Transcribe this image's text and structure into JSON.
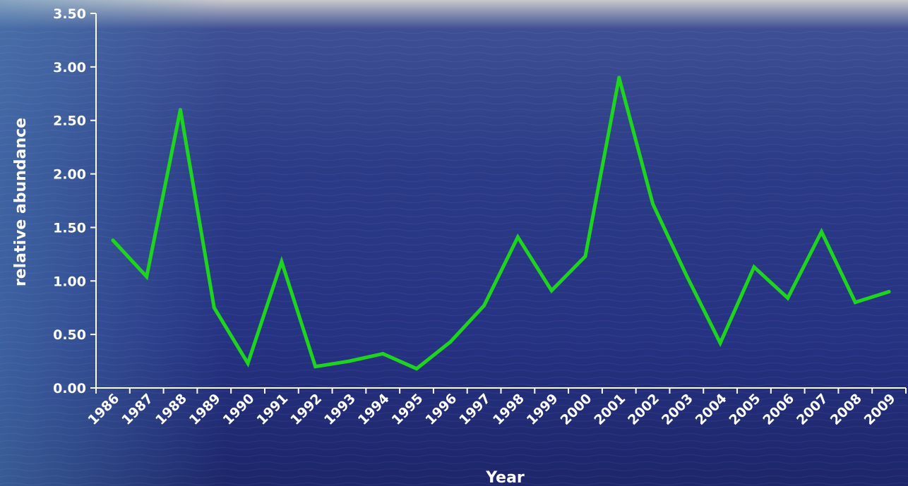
{
  "chart_data": {
    "type": "line",
    "xlabel": "Year",
    "ylabel": "relative abundance",
    "ylim": [
      0,
      3.5
    ],
    "yticks": [
      "0.00",
      "0.50",
      "1.00",
      "1.50",
      "2.00",
      "2.50",
      "3.00",
      "3.50"
    ],
    "categories": [
      "1986",
      "1987",
      "1988",
      "1989",
      "1990",
      "1991",
      "1992",
      "1993",
      "1994",
      "1995",
      "1996",
      "1997",
      "1998",
      "1999",
      "2000",
      "2001",
      "2002",
      "2003",
      "2004",
      "2005",
      "2006",
      "2007",
      "2008",
      "2009"
    ],
    "series": [
      {
        "color": "#1fd41f",
        "values": [
          1.38,
          1.04,
          2.6,
          0.75,
          0.23,
          1.18,
          0.2,
          0.25,
          0.32,
          0.18,
          0.43,
          0.77,
          1.41,
          0.91,
          1.23,
          2.9,
          1.72,
          1.05,
          0.42,
          1.13,
          0.84,
          1.46,
          0.8,
          0.9
        ]
      }
    ],
    "grid": false,
    "legend": "none",
    "colors": {
      "axis": "#ffffff",
      "text": "#ffffff",
      "background_top": "#c9c9cc",
      "background_sea": "#25327f"
    }
  }
}
